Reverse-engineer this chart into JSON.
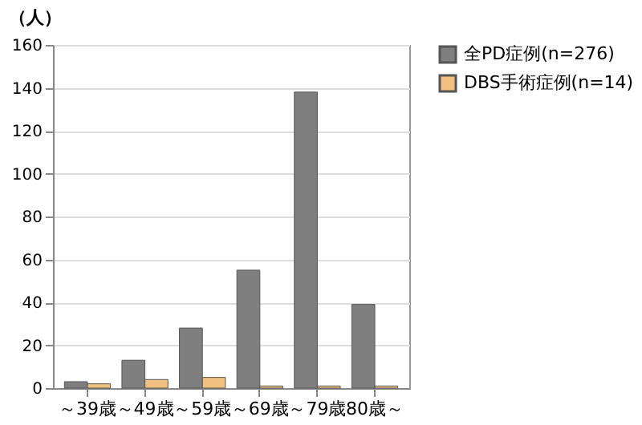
{
  "chart_data": {
    "type": "bar",
    "ylabel": "（人）",
    "categories": [
      "～39歳",
      "～49歳",
      "～59歳",
      "～69歳",
      "～79歳",
      "80歳～"
    ],
    "series": [
      {
        "name": "全PD症例(n=276)",
        "color": "#7f7f7f",
        "values": [
          3,
          13,
          28,
          55,
          138,
          39
        ]
      },
      {
        "name": "DBS手術症例(n=14)",
        "color": "#f0c080",
        "values": [
          2,
          4,
          5,
          1,
          1,
          1
        ]
      }
    ],
    "ylim": [
      0,
      160
    ],
    "yticks": [
      0,
      20,
      40,
      60,
      80,
      100,
      120,
      140,
      160
    ],
    "grid": "y",
    "legend": "right"
  }
}
